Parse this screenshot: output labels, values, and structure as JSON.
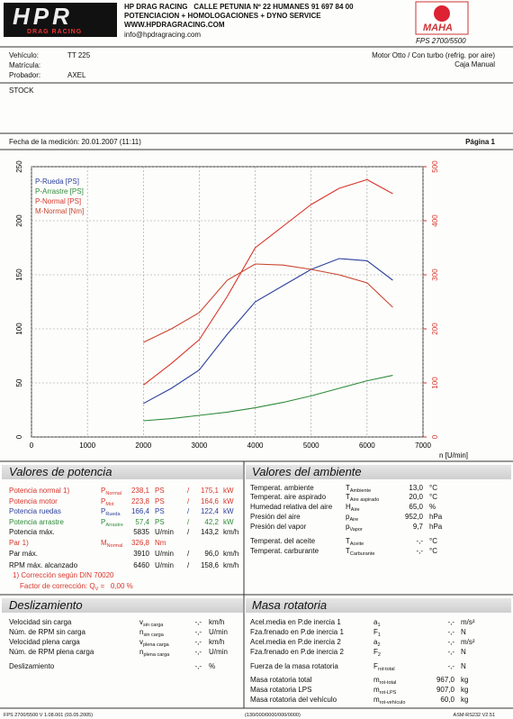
{
  "header": {
    "logo_main": "HPR",
    "logo_sub": "DRAG RACING",
    "lines": [
      "HP DRAG RACING   CALLE PETUNIA Nº 22 HUMANES 91 697 84 00",
      "POTENCIACION + HOMOLOGACIONES + DYNO SERVICE",
      "WWW.HPDRAGRACING.COM",
      "info@hpdragracing.com"
    ],
    "brand": "MAHA",
    "model": "FPS 2700/5500"
  },
  "vehicle": {
    "rows": [
      {
        "label": "Vehículo:",
        "value": "TT 225"
      },
      {
        "label": "Matrícula:"
      },
      {
        "label": "Probador:",
        "value": "AXEL"
      }
    ],
    "engine": "Motor Otto / Con turbo (refrig. por aire)",
    "gearbox": "Caja Manual",
    "note": "STOCK"
  },
  "measurement": {
    "date": "Fecha de la medición: 20.01.2007 (11:11)",
    "page": "Página 1"
  },
  "chart_data": {
    "type": "line",
    "x_label": "n [U/min]",
    "x": [
      2000,
      2500,
      3000,
      3500,
      4000,
      4500,
      5000,
      5500,
      6000,
      6460
    ],
    "series": [
      {
        "name": "P-Rueda [PS]",
        "color": "#2b3f9c",
        "values": [
          31,
          45,
          62,
          95,
          125,
          140,
          155,
          165,
          163,
          145
        ]
      },
      {
        "name": "P-Arrastre [PS]",
        "color": "#2e8b3a",
        "values": [
          15,
          17,
          20,
          23,
          27,
          32,
          38,
          45,
          52,
          57
        ]
      },
      {
        "name": "P-Normal [PS]",
        "color": "#d8352b",
        "values": [
          48,
          68,
          90,
          130,
          175,
          195,
          215,
          230,
          238,
          225
        ]
      },
      {
        "name": "M-Normal [Nm]",
        "color": "#c9452f",
        "axis": "y2",
        "values": [
          175,
          200,
          230,
          290,
          320,
          318,
          310,
          300,
          285,
          240
        ]
      }
    ],
    "xlim": [
      0,
      7000
    ],
    "xticks": [
      0,
      1000,
      2000,
      3000,
      4000,
      5000,
      6000,
      7000
    ],
    "ylim": [
      0,
      250
    ],
    "yticks": [
      0,
      50,
      100,
      150,
      200,
      250
    ],
    "y2lim": [
      0,
      500
    ],
    "y2ticks": [
      0,
      100,
      200,
      300,
      400,
      500
    ],
    "y2color": "#d8352b",
    "grid": true,
    "legend": "top-left"
  },
  "power": {
    "title": "Valores de potencia",
    "rows": [
      {
        "label": "Potencia normal 1)",
        "sym": "P",
        "sub": "Normal",
        "v1": "238,1",
        "u1": "PS",
        "sep": "/",
        "v2": "175,1",
        "u2": "kW",
        "color": "#d8352b"
      },
      {
        "label": "Potencia motor",
        "sym": "P",
        "sub": "Mot",
        "v1": "223,8",
        "u1": "PS",
        "sep": "/",
        "v2": "164,6",
        "u2": "kW",
        "color": "#d8352b"
      },
      {
        "label": "Potencia ruedas",
        "sym": "P",
        "sub": "Rueda",
        "v1": "166,4",
        "u1": "PS",
        "sep": "/",
        "v2": "122,4",
        "u2": "kW",
        "color": "#2b3f9c"
      },
      {
        "label": "Potencia arrastre",
        "sym": "P",
        "sub": "Arrastre",
        "v1": "57,4",
        "u1": "PS",
        "sep": "/",
        "v2": "42,2",
        "u2": "kW",
        "color": "#2e8b3a"
      },
      {
        "label": "Potencia máx.",
        "v1": "5835",
        "u1": "U/min",
        "sep": "/",
        "v2": "143,2",
        "u2": "km/h"
      },
      {
        "label": "Par 1)",
        "sym": "M",
        "sub": "Normal",
        "v1": "326,8",
        "u1": "Nm",
        "color": "#d8352b"
      },
      {
        "label": "Par máx.",
        "v1": "3910",
        "u1": "U/min",
        "sep": "/",
        "v2": "96,0",
        "u2": "km/h"
      },
      {
        "label": "RPM máx. alcanzado",
        "v1": "6460",
        "u1": "U/min",
        "sep": "/",
        "v2": "158,6",
        "u2": "km/h"
      }
    ],
    "note": "1) Corrección según DIN 70020",
    "factor": {
      "label": "Factor de corrección:",
      "sym": "Q",
      "sub": "V",
      "value": "=   0,00 %"
    }
  },
  "ambient": {
    "title": "Valores del ambiente",
    "rows": [
      {
        "label": "Temperat. ambiente",
        "sym": "T",
        "sub": "Ambiente",
        "v1": "13,0",
        "u1": "°C"
      },
      {
        "label": "Temperat. aire aspirado",
        "sym": "T",
        "sub": "Aire aspirado",
        "v1": "20,0",
        "u1": "°C"
      },
      {
        "label": "Humedad relativa del aire",
        "sym": "H",
        "sub": "Aire",
        "v1": "65,0",
        "u1": "%"
      },
      {
        "label": "Presión del aire",
        "sym": "p",
        "sub": "Aire",
        "v1": "952,0",
        "u1": "hPa"
      },
      {
        "label": "Presión del vapor",
        "sym": "p",
        "sub": "Vapor",
        "v1": "9,7",
        "u1": "hPa"
      },
      {
        "label": "Temperat. del aceite",
        "sym": "T",
        "sub": "Aceite",
        "v1": "-,-",
        "u1": "°C"
      },
      {
        "label": "Temperat. carburante",
        "sym": "T",
        "sub": "Carburante",
        "v1": "-,-",
        "u1": "°C"
      }
    ]
  },
  "slip": {
    "title": "Deslizamiento",
    "rows": [
      {
        "label": "Velocidad sin carga",
        "sym": "v",
        "sub": "sin carga",
        "v1": "-,-",
        "u1": "km/h"
      },
      {
        "label": "Núm. de RPM sin carga",
        "sym": "n",
        "sub": "sin carga",
        "v1": "-,-",
        "u1": "U/min"
      },
      {
        "label": "Velocidad plena carga",
        "sym": "v",
        "sub": "plena carga",
        "v1": "-,-",
        "u1": "km/h"
      },
      {
        "label": "Núm. de RPM plena carga",
        "sym": "n",
        "sub": "plena carga",
        "v1": "-,-",
        "u1": "U/min"
      },
      {
        "label": "Deslizamiento",
        "v1": "-,-",
        "u1": "%"
      }
    ]
  },
  "rotating_mass": {
    "title": "Masa rotatoria",
    "rows": [
      {
        "label": "Acel.media en P.de inercia 1",
        "sym": "a",
        "sub": "1",
        "v1": "-,-",
        "u1": "m/s²"
      },
      {
        "label": "Fza.frenado en P.de inercia 1",
        "sym": "F",
        "sub": "1",
        "v1": "-,-",
        "u1": "N"
      },
      {
        "label": "Acel.media en P.de inercia 2",
        "sym": "a",
        "sub": "2",
        "v1": "-,-",
        "u1": "m/s²"
      },
      {
        "label": "Fza.frenado en P.de inercia 2",
        "sym": "F",
        "sub": "2",
        "v1": "-,-",
        "u1": "N"
      },
      {
        "label": "Fuerza de la masa rotatoria",
        "sym": "F",
        "sub": "rot-total",
        "v1": "-,-",
        "u1": "N"
      },
      {
        "label": "Masa rotatoria total",
        "sym": "m",
        "sub": "rot-total",
        "v1": "967,0",
        "u1": "kg"
      },
      {
        "label": "Masa rotatoria LPS",
        "sym": "m",
        "sub": "rot-LPS",
        "v1": "907,0",
        "u1": "kg"
      },
      {
        "label": "Masa rotatoria del vehículo",
        "sym": "m",
        "sub": "rot-vehículo",
        "v1": "60,0",
        "u1": "kg"
      }
    ]
  },
  "footer": {
    "left": "FPS 2700/5500 V 1.08.001 (03.05.2005)",
    "center": "(130/000/0000/000/0000)",
    "right": "ASM-RS232 V2.51"
  }
}
